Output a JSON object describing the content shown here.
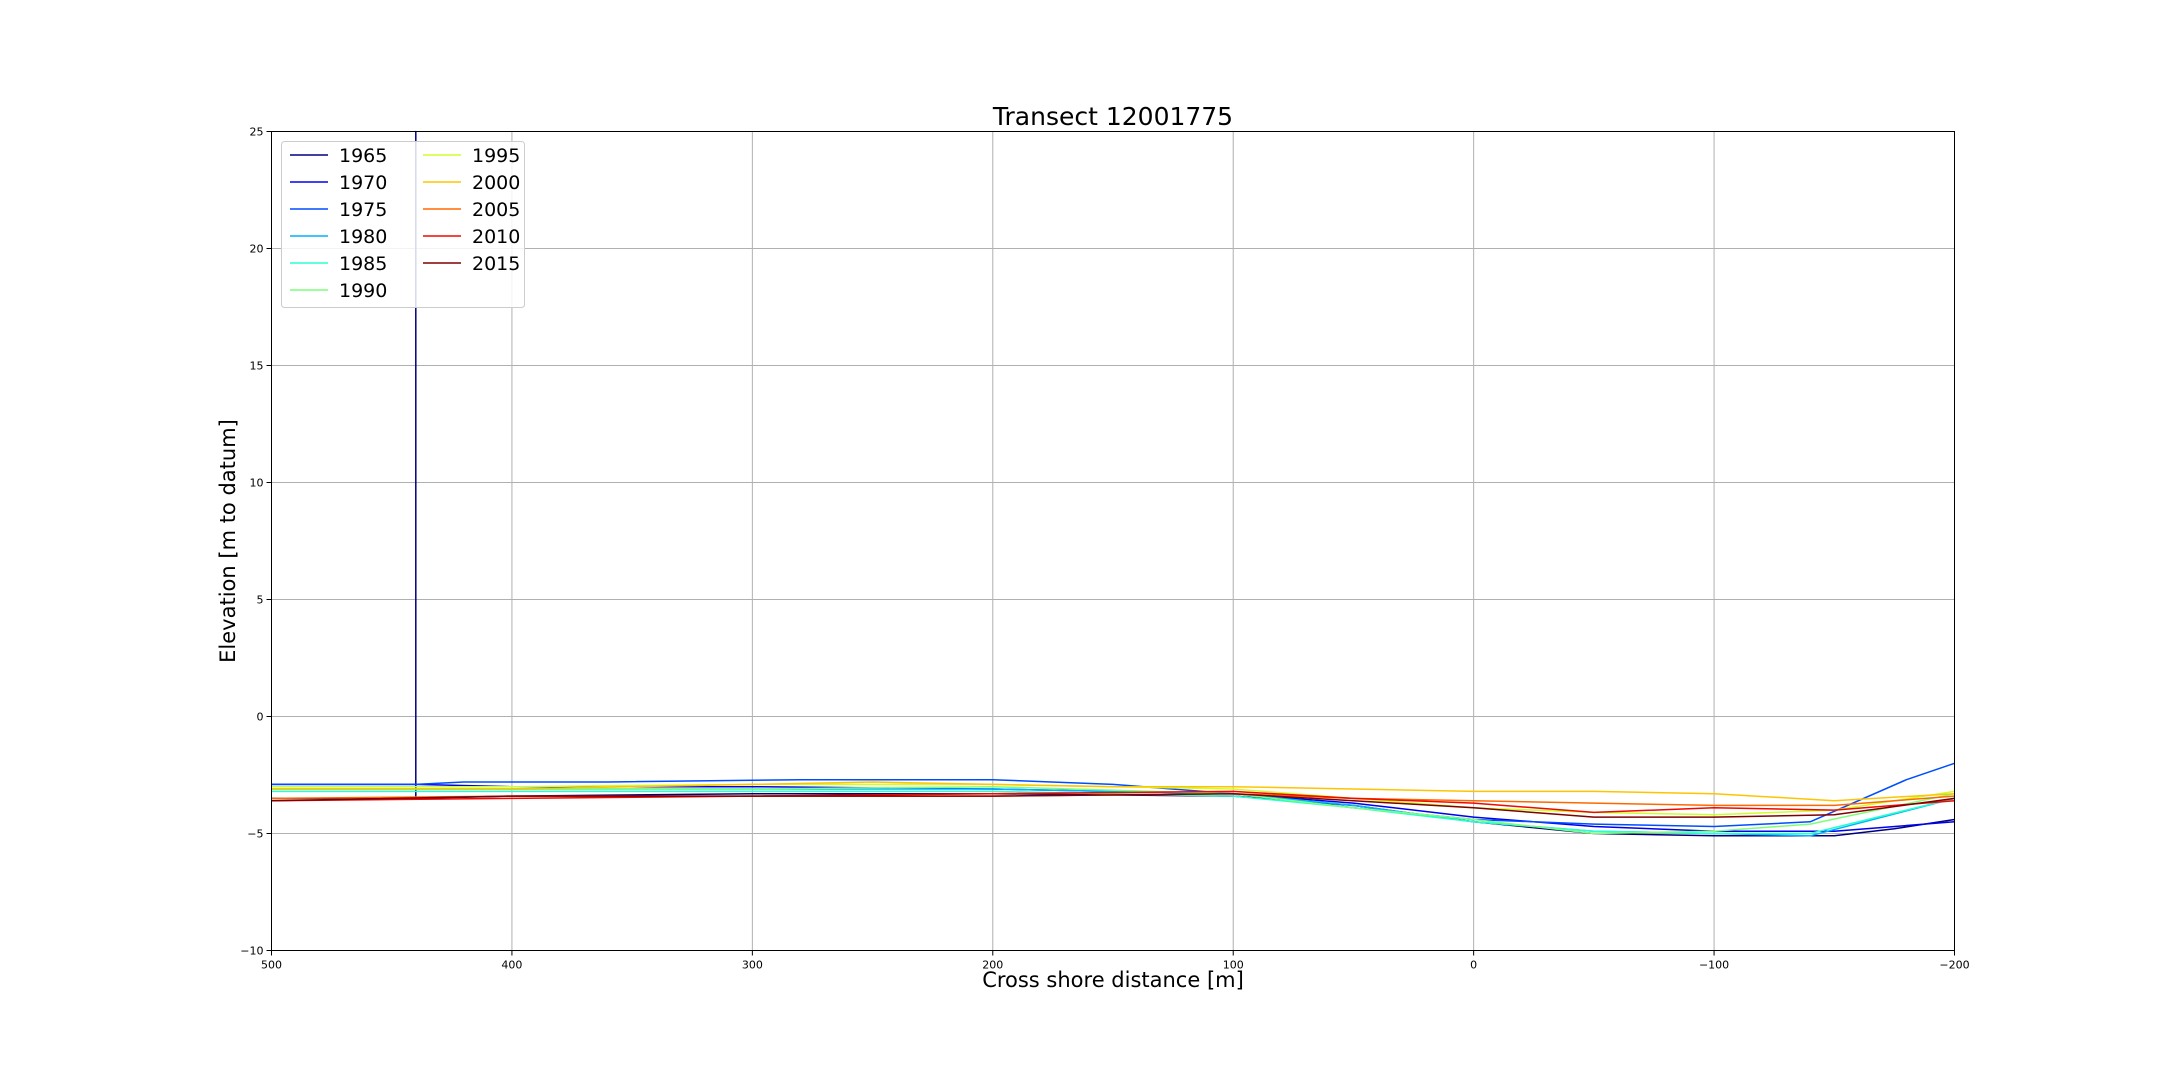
{
  "chart_data": {
    "type": "line",
    "title": "Transect 12001775",
    "xlabel": "Cross shore distance [m]",
    "ylabel": "Elevation [m to datum]",
    "xlim": [
      500,
      -200
    ],
    "ylim": [
      -10,
      25
    ],
    "x_inverted": true,
    "grid": true,
    "legend_placement": "upper-left",
    "legend_columns": 2,
    "xticks": [
      500,
      400,
      300,
      200,
      100,
      0,
      -100,
      -200
    ],
    "xtick_labels": [
      "500",
      "400",
      "300",
      "200",
      "100",
      "0",
      "−100",
      "−200"
    ],
    "yticks": [
      -10,
      -5,
      0,
      5,
      10,
      15,
      20,
      25
    ],
    "ytick_labels": [
      "−10",
      "−5",
      "0",
      "5",
      "10",
      "15",
      "20",
      "25"
    ],
    "series": [
      {
        "name": "1965",
        "color": "#00007f",
        "x": [
          500,
          440,
          440,
          440,
          400,
          300,
          200,
          100,
          50,
          0,
          -50,
          -100,
          -150,
          -175,
          -200
        ],
        "y": [
          -3.5,
          -3.5,
          25,
          -3.5,
          -3.4,
          -3.3,
          -3.3,
          -3.4,
          -3.8,
          -4.5,
          -5.0,
          -5.1,
          -5.1,
          -4.8,
          -4.4
        ]
      },
      {
        "name": "1970",
        "color": "#0000f1",
        "x": [
          500,
          440,
          400,
          300,
          200,
          100,
          50,
          0,
          -50,
          -100,
          -150,
          -200
        ],
        "y": [
          -2.9,
          -2.9,
          -3.0,
          -3.0,
          -3.1,
          -3.3,
          -3.7,
          -4.3,
          -4.7,
          -4.9,
          -4.9,
          -4.5
        ]
      },
      {
        "name": "1975",
        "color": "#004dff",
        "x": [
          500,
          440,
          420,
          360,
          280,
          240,
          200,
          150,
          100,
          50,
          0,
          -50,
          -100,
          -140,
          -180,
          -200
        ],
        "y": [
          -2.9,
          -2.9,
          -2.8,
          -2.8,
          -2.7,
          -2.7,
          -2.7,
          -2.9,
          -3.3,
          -3.9,
          -4.4,
          -4.6,
          -4.7,
          -4.5,
          -2.7,
          -2.0
        ]
      },
      {
        "name": "1980",
        "color": "#00b1ff",
        "x": [
          500,
          400,
          300,
          200,
          100,
          50,
          0,
          -50,
          -100,
          -140,
          -200
        ],
        "y": [
          -3.1,
          -3.1,
          -3.1,
          -3.1,
          -3.3,
          -3.8,
          -4.5,
          -4.9,
          -5.0,
          -5.1,
          -3.5
        ]
      },
      {
        "name": "1985",
        "color": "#29ffce",
        "x": [
          500,
          400,
          300,
          200,
          100,
          50,
          0,
          -50,
          -100,
          -140,
          -180,
          -200
        ],
        "y": [
          -3.2,
          -3.2,
          -3.2,
          -3.2,
          -3.4,
          -3.9,
          -4.5,
          -4.9,
          -5.0,
          -5.0,
          -4.0,
          -3.5
        ]
      },
      {
        "name": "1990",
        "color": "#7dff7a",
        "x": [
          500,
          400,
          300,
          200,
          100,
          50,
          0,
          -50,
          -100,
          -140,
          -200
        ],
        "y": [
          -3.1,
          -3.1,
          -3.1,
          -3.0,
          -3.3,
          -3.9,
          -4.4,
          -5.0,
          -4.9,
          -4.6,
          -3.3
        ]
      },
      {
        "name": "1995",
        "color": "#ceff29",
        "x": [
          500,
          400,
          300,
          200,
          100,
          50,
          0,
          -50,
          -100,
          -150,
          -200
        ],
        "y": [
          -3.0,
          -3.0,
          -2.9,
          -2.9,
          -3.1,
          -3.5,
          -3.9,
          -4.1,
          -4.2,
          -4.0,
          -3.2
        ]
      },
      {
        "name": "2000",
        "color": "#ffc400",
        "x": [
          500,
          400,
          300,
          250,
          200,
          150,
          100,
          50,
          0,
          -50,
          -100,
          -150,
          -200
        ],
        "y": [
          -3.1,
          -3.1,
          -2.9,
          -2.8,
          -2.9,
          -3.0,
          -3.0,
          -3.1,
          -3.2,
          -3.2,
          -3.3,
          -3.6,
          -3.3
        ]
      },
      {
        "name": "2005",
        "color": "#ff6800",
        "x": [
          500,
          400,
          300,
          200,
          100,
          50,
          0,
          -50,
          -100,
          -150,
          -200
        ],
        "y": [
          -3.5,
          -3.4,
          -3.4,
          -3.4,
          -3.3,
          -3.5,
          -3.6,
          -3.7,
          -3.8,
          -3.8,
          -3.4
        ]
      },
      {
        "name": "2010",
        "color": "#f10800",
        "x": [
          500,
          400,
          300,
          200,
          100,
          50,
          0,
          -50,
          -100,
          -150,
          -200
        ],
        "y": [
          -3.6,
          -3.5,
          -3.4,
          -3.3,
          -3.2,
          -3.5,
          -3.7,
          -4.1,
          -3.9,
          -4.0,
          -3.6
        ]
      },
      {
        "name": "2015",
        "color": "#7f0000",
        "x": [
          500,
          400,
          300,
          200,
          100,
          50,
          0,
          -50,
          -100,
          -150,
          -200
        ],
        "y": [
          -3.6,
          -3.4,
          -3.4,
          -3.4,
          -3.3,
          -3.6,
          -3.9,
          -4.3,
          -4.3,
          -4.2,
          -3.5
        ]
      }
    ]
  }
}
